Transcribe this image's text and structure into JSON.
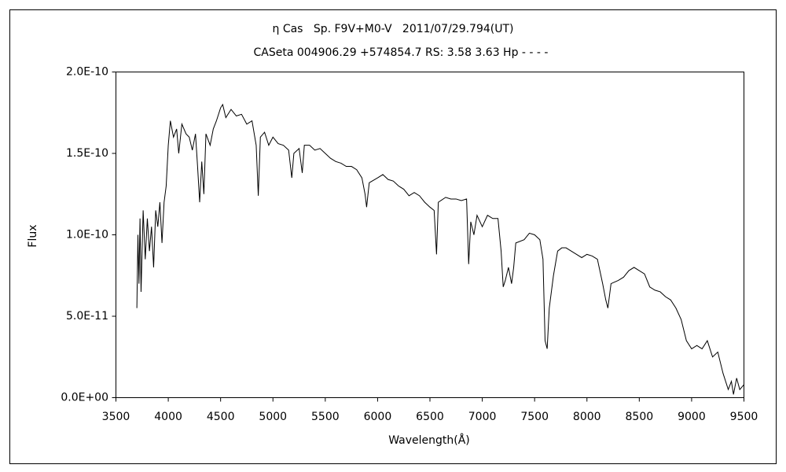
{
  "chart_data": {
    "type": "line",
    "title": "η Cas   Sp. F9V+M0-V   2011/07/29.794(UT)",
    "subtitle": "CASeta 004906.29 +574854.7 RS: 3.58 3.63 Hp - - - -",
    "x_label": "Wavelength(Å)",
    "y_label": "Flux",
    "color": "#000000",
    "xlim": [
      3500,
      9500
    ],
    "xticks": [
      3500,
      4000,
      4500,
      5000,
      5500,
      6000,
      6500,
      7000,
      7500,
      8000,
      8500,
      9000,
      9500
    ],
    "ylim": [
      0,
      2e-10
    ],
    "yticks": [
      {
        "value": 0,
        "label": "0.0E+00"
      },
      {
        "value": 5e-11,
        "label": "5.0E-11"
      },
      {
        "value": 1e-10,
        "label": "1.0E-10"
      },
      {
        "value": 1.5e-10,
        "label": "1.5E-10"
      },
      {
        "value": 2e-10,
        "label": "2.0E-10"
      }
    ],
    "grid": false,
    "x": [
      3700,
      3710,
      3720,
      3730,
      3740,
      3760,
      3780,
      3800,
      3820,
      3840,
      3860,
      3880,
      3900,
      3920,
      3940,
      3960,
      3980,
      4000,
      4020,
      4050,
      4080,
      4100,
      4130,
      4170,
      4200,
      4230,
      4260,
      4280,
      4300,
      4320,
      4340,
      4360,
      4400,
      4430,
      4460,
      4500,
      4520,
      4550,
      4600,
      4650,
      4700,
      4750,
      4800,
      4840,
      4860,
      4880,
      4920,
      4960,
      5000,
      5050,
      5100,
      5150,
      5180,
      5200,
      5250,
      5280,
      5300,
      5350,
      5400,
      5450,
      5500,
      5550,
      5600,
      5650,
      5700,
      5750,
      5800,
      5850,
      5880,
      5895,
      5920,
      6000,
      6050,
      6100,
      6150,
      6200,
      6250,
      6300,
      6350,
      6400,
      6450,
      6500,
      6540,
      6563,
      6580,
      6650,
      6700,
      6750,
      6800,
      6850,
      6870,
      6890,
      6920,
      6950,
      7000,
      7050,
      7100,
      7150,
      7180,
      7200,
      7220,
      7250,
      7280,
      7300,
      7320,
      7400,
      7450,
      7500,
      7550,
      7580,
      7600,
      7620,
      7640,
      7680,
      7720,
      7760,
      7800,
      7850,
      7900,
      7950,
      8000,
      8050,
      8100,
      8150,
      8180,
      8200,
      8230,
      8300,
      8350,
      8400,
      8450,
      8500,
      8550,
      8600,
      8650,
      8700,
      8750,
      8800,
      8850,
      8900,
      8950,
      9000,
      9050,
      9100,
      9150,
      9200,
      9250,
      9300,
      9350,
      9380,
      9400,
      9430,
      9460,
      9500
    ],
    "values": [
      5.5e-11,
      1e-10,
      7e-11,
      1.1e-10,
      6.5e-11,
      1.15e-10,
      8.5e-11,
      1.1e-10,
      9e-11,
      1.05e-10,
      8e-11,
      1.15e-10,
      1.05e-10,
      1.2e-10,
      9.5e-11,
      1.2e-10,
      1.3e-10,
      1.55e-10,
      1.7e-10,
      1.6e-10,
      1.65e-10,
      1.5e-10,
      1.68e-10,
      1.62e-10,
      1.6e-10,
      1.52e-10,
      1.62e-10,
      1.42e-10,
      1.2e-10,
      1.45e-10,
      1.25e-10,
      1.62e-10,
      1.55e-10,
      1.65e-10,
      1.7e-10,
      1.78e-10,
      1.8e-10,
      1.72e-10,
      1.77e-10,
      1.73e-10,
      1.74e-10,
      1.68e-10,
      1.7e-10,
      1.55e-10,
      1.24e-10,
      1.6e-10,
      1.63e-10,
      1.55e-10,
      1.6e-10,
      1.56e-10,
      1.55e-10,
      1.52e-10,
      1.35e-10,
      1.5e-10,
      1.53e-10,
      1.38e-10,
      1.55e-10,
      1.55e-10,
      1.52e-10,
      1.53e-10,
      1.5e-10,
      1.47e-10,
      1.45e-10,
      1.44e-10,
      1.42e-10,
      1.42e-10,
      1.4e-10,
      1.35e-10,
      1.25e-10,
      1.17e-10,
      1.32e-10,
      1.35e-10,
      1.37e-10,
      1.34e-10,
      1.33e-10,
      1.3e-10,
      1.28e-10,
      1.24e-10,
      1.26e-10,
      1.24e-10,
      1.2e-10,
      1.17e-10,
      1.15e-10,
      8.8e-11,
      1.2e-10,
      1.23e-10,
      1.22e-10,
      1.22e-10,
      1.21e-10,
      1.22e-10,
      8.2e-11,
      1.08e-10,
      1e-10,
      1.12e-10,
      1.05e-10,
      1.12e-10,
      1.1e-10,
      1.1e-10,
      9e-11,
      6.8e-11,
      7.2e-11,
      8e-11,
      7e-11,
      8e-11,
      9.5e-11,
      9.7e-11,
      1.01e-10,
      1e-10,
      9.7e-11,
      8.5e-11,
      3.5e-11,
      3e-11,
      5.5e-11,
      7.5e-11,
      9e-11,
      9.2e-11,
      9.2e-11,
      9e-11,
      8.8e-11,
      8.6e-11,
      8.8e-11,
      8.7e-11,
      8.5e-11,
      7e-11,
      6e-11,
      5.5e-11,
      7e-11,
      7.2e-11,
      7.4e-11,
      7.8e-11,
      8e-11,
      7.8e-11,
      7.6e-11,
      6.8e-11,
      6.6e-11,
      6.5e-11,
      6.2e-11,
      6e-11,
      5.5e-11,
      4.8e-11,
      3.5e-11,
      3e-11,
      3.2e-11,
      3e-11,
      3.5e-11,
      2.5e-11,
      2.8e-11,
      1.5e-11,
      5e-12,
      1e-11,
      2e-12,
      1.2e-11,
      5e-12,
      8e-12
    ]
  }
}
